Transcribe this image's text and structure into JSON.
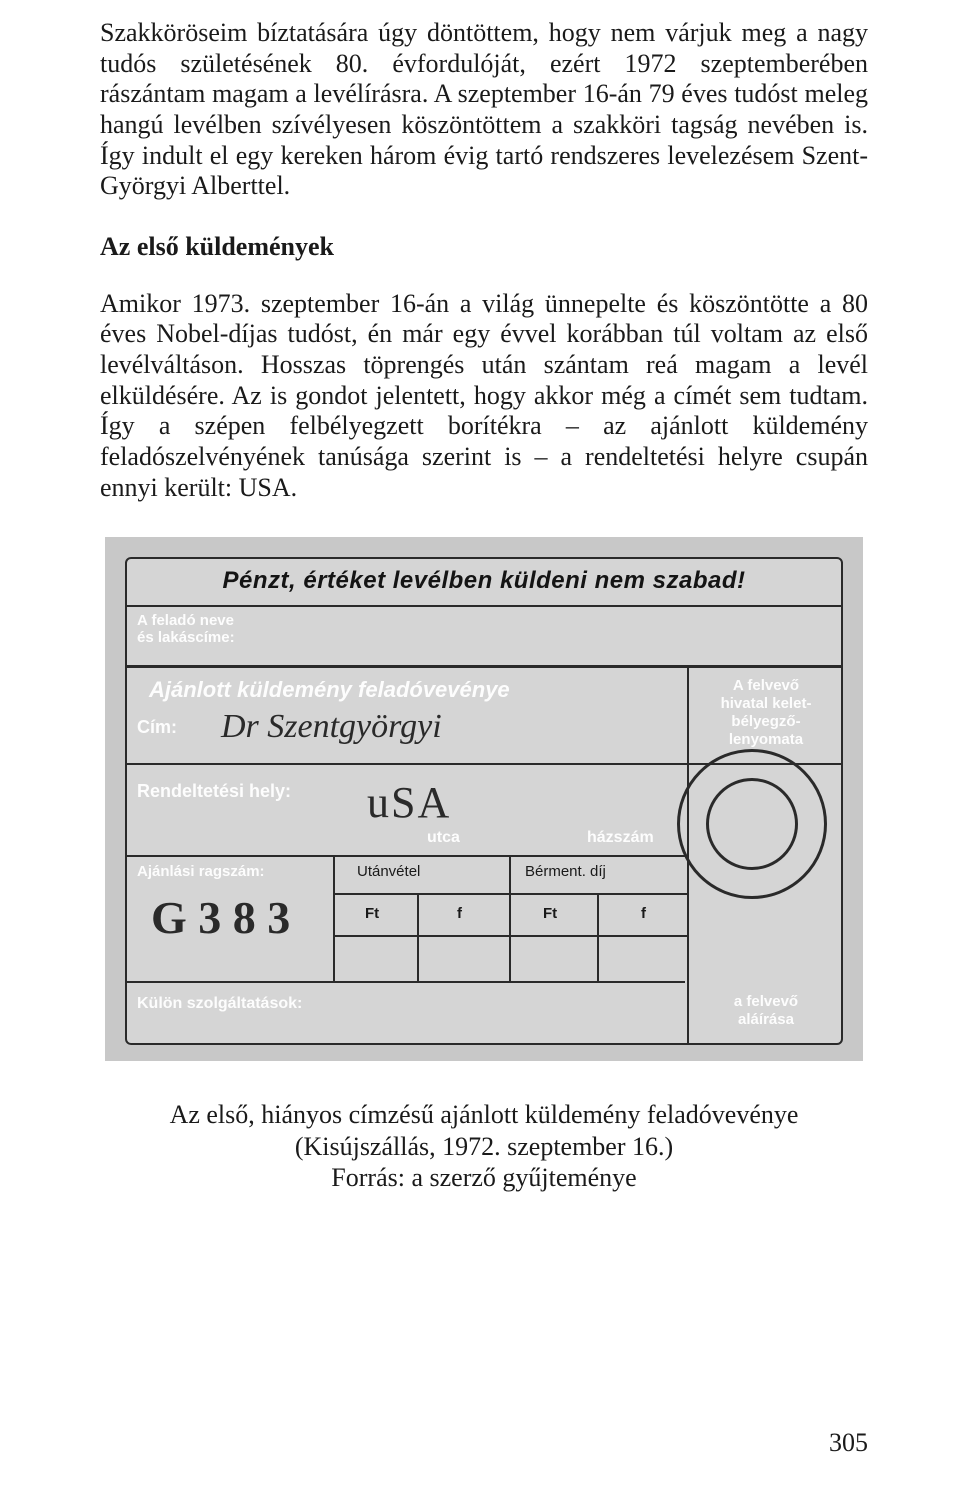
{
  "paragraph1": "Szakköröseim bíztatására úgy döntöttem, hogy nem várjuk meg a nagy tudós születésének 80. évfordulóját, ezért 1972 szeptemberében rászántam magam a levélírásra. A szeptember 16-án 79 éves tudóst meleg hangú levélben szívélyesen köszöntöttem a szakköri tagság nevében is. Így indult el egy kereken három évig tartó rendszeres levelezésem Szent-Györgyi Alberttel.",
  "section_heading": "Az első küldemények",
  "paragraph2": "Amikor 1973. szeptember 16-án a világ ünnepelte és köszöntötte a 80 éves Nobel-díjas tudóst, én már egy évvel korábban túl voltam az első levélváltáson. Hosszas töprengés után szántam reá magam a levél elküldésére. Az is gondot jelentett, hogy akkor még a címét sem tudtam. Így a szépen felbélyegzett borítékra – az ajánlott küldemény feladószelvényének tanúsága szerint is – a rendeltetési helyre csupán ennyi került: USA.",
  "receipt": {
    "header": "Pénzt, értéket levélben küldeni nem szabad!",
    "sender_label": "A feladó neve\nés lakáscíme:",
    "ajanlott": "Ajánlott küldemény feladóvevénye",
    "cim_label": "Cím:",
    "rendeltetes_label": "Rendeltetési hely:",
    "utca": "utca",
    "hazszam": "házszám",
    "ajanlas_label": "Ajánlási ragszám:",
    "utanvetel": "Utánvétel",
    "berment": "Bérment. díj",
    "ft": "Ft",
    "f": "f",
    "kulon": "Külön szolgáltatások:",
    "right_label": "A felvevő\nhivatal kelet-\nbélyegző-\nlenyomata",
    "sign_label": "a felvevő\naláírása",
    "hand_name": "Dr Szentgyörgyi",
    "hand_usa": "uSA",
    "hand_number": "G 3 8 3"
  },
  "caption_line1": "Az első, hiányos címzésű ajánlott küldemény feladóvevénye",
  "caption_line2": "(Kisújszállás, 1972. szeptember 16.)",
  "caption_line3": "Forrás: a szerző gyűjteménye",
  "page_number": "305"
}
